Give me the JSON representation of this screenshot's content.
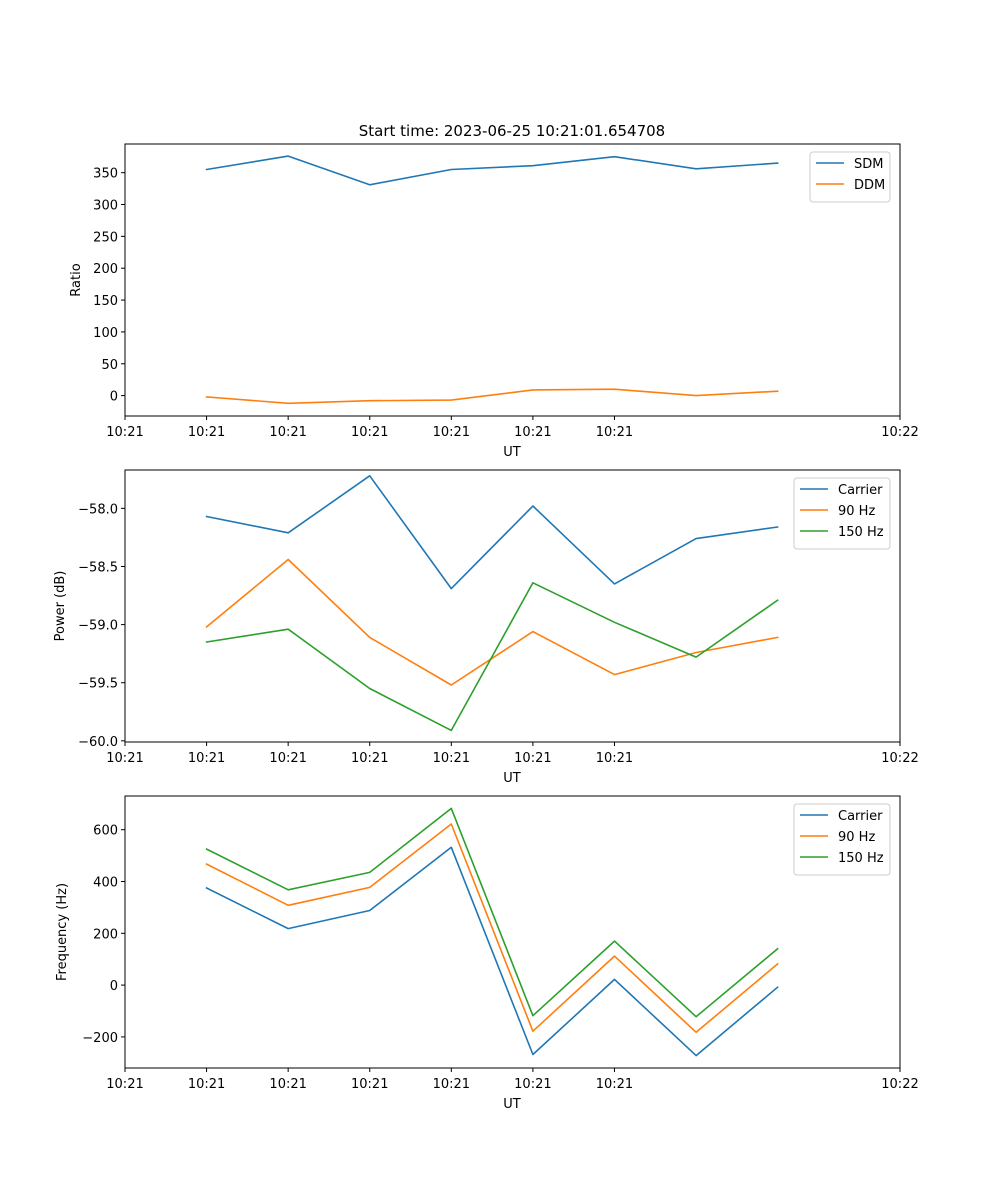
{
  "chart_data": [
    {
      "type": "line",
      "title": "Start time: 2023-06-25 10:21:01.654708",
      "xlabel": "UT",
      "ylabel": "Ratio",
      "x_tick_labels": [
        "10:21",
        "10:21",
        "10:21",
        "10:21",
        "10:21",
        "10:21",
        "10:21"
      ],
      "x_tick_end_label": "10:22",
      "x_range": [
        -1,
        8.5
      ],
      "ylim": [
        -32,
        395
      ],
      "y_ticks": [
        0,
        50,
        100,
        150,
        200,
        250,
        300,
        350
      ],
      "grid": false,
      "legend_position": "top-right",
      "x": [
        0,
        1,
        2,
        3,
        4,
        5,
        6,
        7
      ],
      "series": [
        {
          "name": "SDM",
          "color": "#1f77b4",
          "values": [
            355,
            376,
            331,
            355,
            361,
            375,
            356,
            365
          ]
        },
        {
          "name": "DDM",
          "color": "#ff7f0e",
          "values": [
            -2,
            -12,
            -8,
            -7,
            9,
            10,
            0,
            7
          ]
        }
      ]
    },
    {
      "type": "line",
      "title": "",
      "xlabel": "UT",
      "ylabel": "Power (dB)",
      "x_tick_labels": [
        "10:21",
        "10:21",
        "10:21",
        "10:21",
        "10:21",
        "10:21",
        "10:21"
      ],
      "x_tick_end_label": "10:22",
      "x_range": [
        -1,
        8.5
      ],
      "ylim": [
        -60.01,
        -57.67
      ],
      "y_ticks": [
        -60.0,
        -59.5,
        -59.0,
        -58.5,
        -58.0
      ],
      "y_tick_labels": [
        "−60.0",
        "−59.5",
        "−59.0",
        "−58.5",
        "−58.0"
      ],
      "grid": false,
      "legend_position": "top-right",
      "x": [
        0,
        1,
        2,
        3,
        4,
        5,
        6,
        7
      ],
      "series": [
        {
          "name": "Carrier",
          "color": "#1f77b4",
          "values": [
            -58.07,
            -58.21,
            -57.72,
            -58.69,
            -57.98,
            -58.65,
            -58.26,
            -58.16
          ]
        },
        {
          "name": "90 Hz",
          "color": "#ff7f0e",
          "values": [
            -59.02,
            -58.44,
            -59.11,
            -59.52,
            -59.06,
            -59.43,
            -59.24,
            -59.11
          ]
        },
        {
          "name": "150 Hz",
          "color": "#2ca02c",
          "values": [
            -59.15,
            -59.04,
            -59.55,
            -59.91,
            -58.64,
            -58.98,
            -59.28,
            -58.79
          ]
        }
      ]
    },
    {
      "type": "line",
      "title": "",
      "xlabel": "UT",
      "ylabel": "Frequency (Hz)",
      "x_tick_labels": [
        "10:21",
        "10:21",
        "10:21",
        "10:21",
        "10:21",
        "10:21",
        "10:21"
      ],
      "x_tick_end_label": "10:22",
      "x_range": [
        -1,
        8.5
      ],
      "ylim": [
        -320,
        730
      ],
      "y_ticks": [
        -200,
        0,
        200,
        400,
        600
      ],
      "y_tick_labels": [
        "−200",
        "0",
        "200",
        "400",
        "600"
      ],
      "grid": false,
      "legend_position": "top-right",
      "x": [
        0,
        1,
        2,
        3,
        4,
        5,
        6,
        7
      ],
      "series": [
        {
          "name": "Carrier",
          "color": "#1f77b4",
          "values": [
            375,
            218,
            288,
            532,
            -268,
            22,
            -272,
            -8
          ]
        },
        {
          "name": "90 Hz",
          "color": "#ff7f0e",
          "values": [
            467,
            308,
            377,
            622,
            -178,
            112,
            -182,
            82
          ]
        },
        {
          "name": "150 Hz",
          "color": "#2ca02c",
          "values": [
            525,
            368,
            435,
            682,
            -118,
            170,
            -122,
            140
          ]
        }
      ]
    }
  ]
}
